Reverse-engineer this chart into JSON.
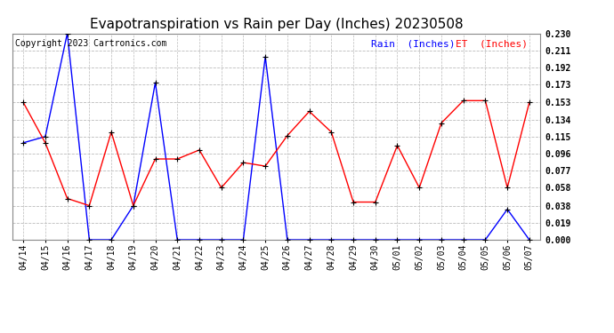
{
  "title": "Evapotranspiration vs Rain per Day (Inches) 20230508",
  "copyright": "Copyright 2023 Cartronics.com",
  "legend_rain": "Rain  (Inches)",
  "legend_et": "ET  (Inches)",
  "dates": [
    "04/14",
    "04/15",
    "04/16",
    "04/17",
    "04/18",
    "04/19",
    "04/20",
    "04/21",
    "04/22",
    "04/23",
    "04/24",
    "04/25",
    "04/26",
    "04/27",
    "04/28",
    "04/29",
    "04/30",
    "05/01",
    "05/02",
    "05/03",
    "05/04",
    "05/05",
    "05/06",
    "05/07"
  ],
  "rain": [
    0.108,
    0.115,
    0.23,
    0.0,
    0.0,
    0.038,
    0.175,
    0.0,
    0.0,
    0.0,
    0.0,
    0.204,
    0.0,
    0.0,
    0.0,
    0.0,
    0.0,
    0.0,
    0.0,
    0.0,
    0.0,
    0.0,
    0.034,
    0.0
  ],
  "et": [
    0.153,
    0.108,
    0.046,
    0.038,
    0.12,
    0.038,
    0.09,
    0.09,
    0.1,
    0.058,
    0.086,
    0.082,
    0.116,
    0.143,
    0.12,
    0.042,
    0.042,
    0.105,
    0.058,
    0.13,
    0.155,
    0.155,
    0.058,
    0.153
  ],
  "ylim_min": 0.0,
  "ylim_max": 0.23,
  "yticks": [
    0.0,
    0.019,
    0.038,
    0.058,
    0.077,
    0.096,
    0.115,
    0.134,
    0.153,
    0.173,
    0.192,
    0.211,
    0.23
  ],
  "rain_color": "#0000ff",
  "et_color": "#ff0000",
  "marker_color": "#000000",
  "bg_color": "#ffffff",
  "grid_color": "#bbbbbb",
  "title_fontsize": 11,
  "copyright_fontsize": 7,
  "legend_fontsize": 8,
  "tick_fontsize": 7
}
